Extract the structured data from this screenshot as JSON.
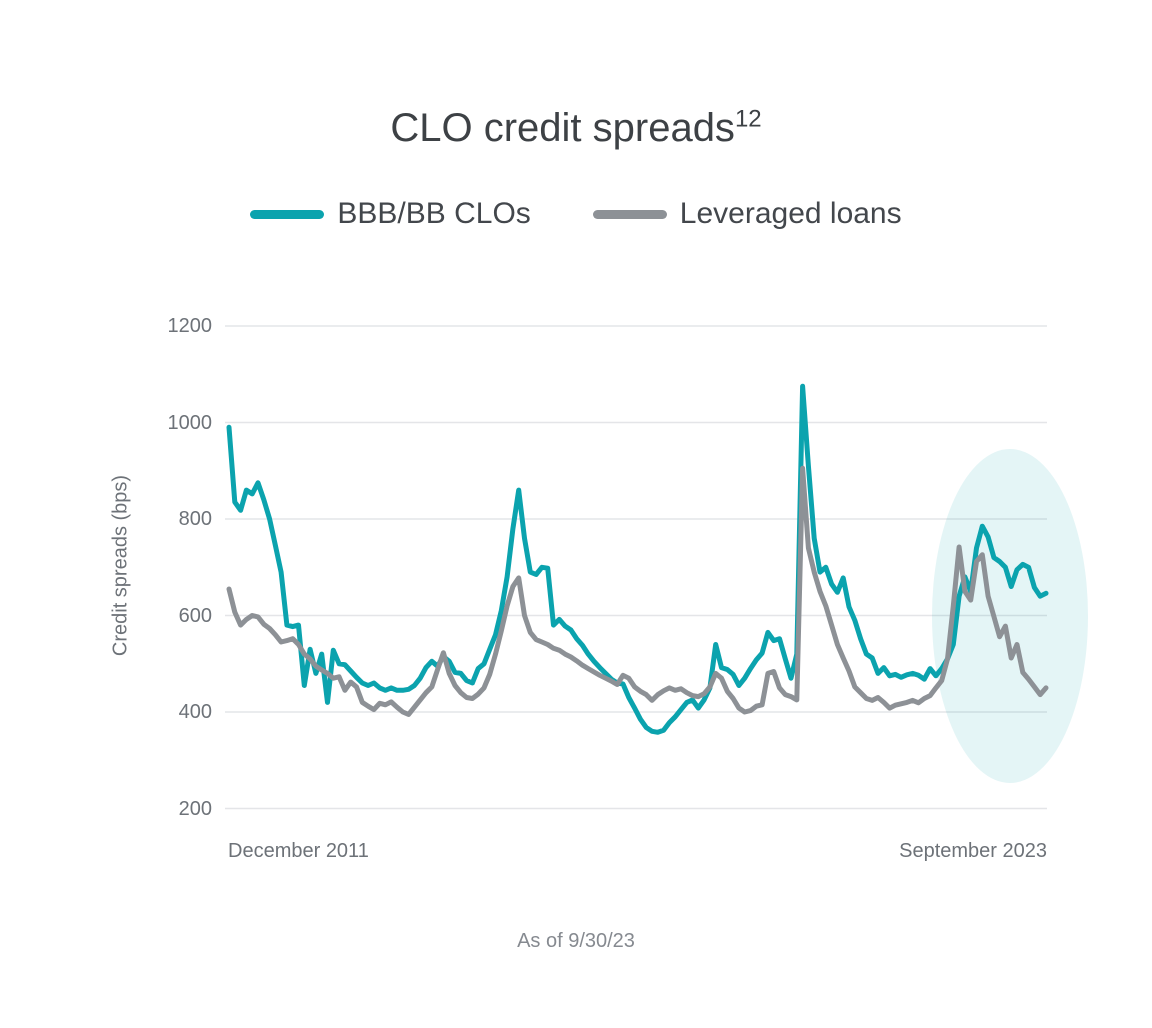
{
  "title": {
    "text": "CLO credit spreads",
    "superscript": "12"
  },
  "legend": {
    "items": [
      {
        "label": "BBB/BB CLOs",
        "color": "#0ba3ae"
      },
      {
        "label": "Leveraged loans",
        "color": "#8d9196"
      }
    ]
  },
  "footnote": "As of 9/30/23",
  "colors": {
    "background": "#ffffff",
    "gridline": "#e4e5e8",
    "axis_text": "#6d7278",
    "title_text": "#3d4145",
    "highlight": "rgba(11,163,174,0.11)"
  },
  "chart_data": {
    "type": "line",
    "title": "CLO credit spreads",
    "ylabel": "Credit spreads (bps)",
    "xlabel": "",
    "x_axis_labels": [
      "December 2011",
      "September 2023"
    ],
    "yticks": [
      1200,
      1000,
      800,
      600,
      400,
      200
    ],
    "ylim": [
      200,
      1200
    ],
    "frequency": "monthly",
    "x_start": "December 2011",
    "x_end": "September 2023",
    "as_of": "9/30/23",
    "grid": true,
    "legend_position": "top-center",
    "highlight": {
      "shape": "ellipse",
      "region": "mid-2022 through September 2023",
      "color": "rgba(11,163,174,0.11)"
    },
    "series": [
      {
        "name": "BBB/BB CLOs",
        "color": "#0ba3ae",
        "values": [
          990,
          835,
          818,
          860,
          852,
          875,
          840,
          800,
          745,
          690,
          580,
          577,
          580,
          455,
          530,
          480,
          520,
          420,
          528,
          500,
          498,
          485,
          472,
          460,
          455,
          460,
          450,
          445,
          450,
          445,
          445,
          447,
          455,
          470,
          492,
          505,
          495,
          515,
          505,
          482,
          480,
          465,
          460,
          490,
          500,
          530,
          560,
          610,
          680,
          780,
          860,
          760,
          690,
          685,
          700,
          698,
          580,
          592,
          578,
          570,
          552,
          538,
          520,
          505,
          492,
          480,
          468,
          460,
          458,
          430,
          408,
          385,
          368,
          360,
          358,
          362,
          378,
          390,
          405,
          420,
          425,
          408,
          425,
          450,
          540,
          492,
          488,
          478,
          455,
          470,
          490,
          508,
          522,
          565,
          548,
          552,
          510,
          470,
          520,
          1075,
          910,
          760,
          690,
          700,
          665,
          648,
          678,
          618,
          590,
          552,
          520,
          512,
          480,
          492,
          475,
          478,
          472,
          477,
          480,
          476,
          468,
          490,
          475,
          490,
          510,
          540,
          640,
          680,
          650,
          740,
          785,
          763,
          720,
          712,
          700,
          660,
          695,
          706,
          700,
          658,
          640,
          646
        ]
      },
      {
        "name": "Leveraged loans",
        "color": "#8d9196",
        "values": [
          655,
          607,
          580,
          592,
          600,
          597,
          582,
          573,
          560,
          545,
          548,
          552,
          540,
          520,
          510,
          495,
          487,
          480,
          470,
          473,
          445,
          462,
          452,
          420,
          412,
          405,
          418,
          415,
          421,
          410,
          400,
          395,
          410,
          425,
          440,
          452,
          488,
          523,
          480,
          455,
          440,
          430,
          428,
          437,
          450,
          478,
          520,
          568,
          620,
          660,
          678,
          600,
          565,
          550,
          545,
          540,
          532,
          528,
          520,
          514,
          506,
          497,
          490,
          483,
          476,
          470,
          464,
          457,
          476,
          470,
          452,
          443,
          436,
          424,
          436,
          444,
          450,
          445,
          448,
          440,
          434,
          432,
          438,
          452,
          480,
          470,
          443,
          428,
          408,
          400,
          403,
          412,
          415,
          480,
          484,
          450,
          436,
          432,
          425,
          905,
          740,
          690,
          650,
          620,
          580,
          540,
          512,
          485,
          452,
          440,
          428,
          424,
          430,
          420,
          408,
          414,
          417,
          420,
          424,
          419,
          428,
          434,
          450,
          465,
          510,
          620,
          742,
          650,
          632,
          712,
          726,
          640,
          598,
          556,
          578,
          512,
          540,
          482,
          468,
          452,
          436,
          450
        ]
      }
    ]
  }
}
